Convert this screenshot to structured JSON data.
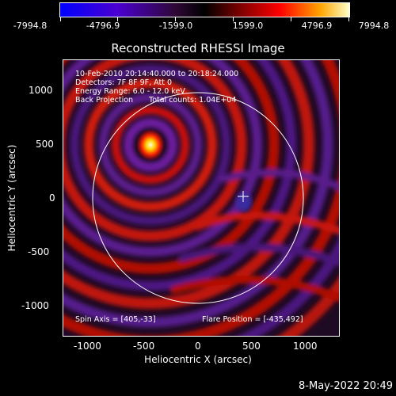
{
  "colorbar": {
    "ticks": [
      "-7994.8",
      "-4796.9",
      "-1599.0",
      "1599.0",
      "4796.9",
      "7994.8"
    ]
  },
  "title": "Reconstructed RHESSI Image",
  "info": {
    "time_range": "10-Feb-2010 20:14:40.000 to 20:18:24.000",
    "detectors": "Detectors: 7F 8F 9F, Att 0",
    "energy": "Energy Range: 6.0 - 12.0 keV",
    "method": "Back Projection",
    "counts": "Total counts: 1.04E+04",
    "spin_axis": "Spin Axis = [405,-33]",
    "flare_position": "Flare Position = [-435,492]"
  },
  "axes": {
    "xlabel": "Heliocentric X (arcsec)",
    "ylabel": "Heliocentric Y (arcsec)",
    "xticks": [
      "-1000",
      "-500",
      "0",
      "500",
      "1000"
    ],
    "yticks": [
      "1000",
      "500",
      "0",
      "-500",
      "-1000"
    ]
  },
  "footer": "8-May-2022 20:49"
}
